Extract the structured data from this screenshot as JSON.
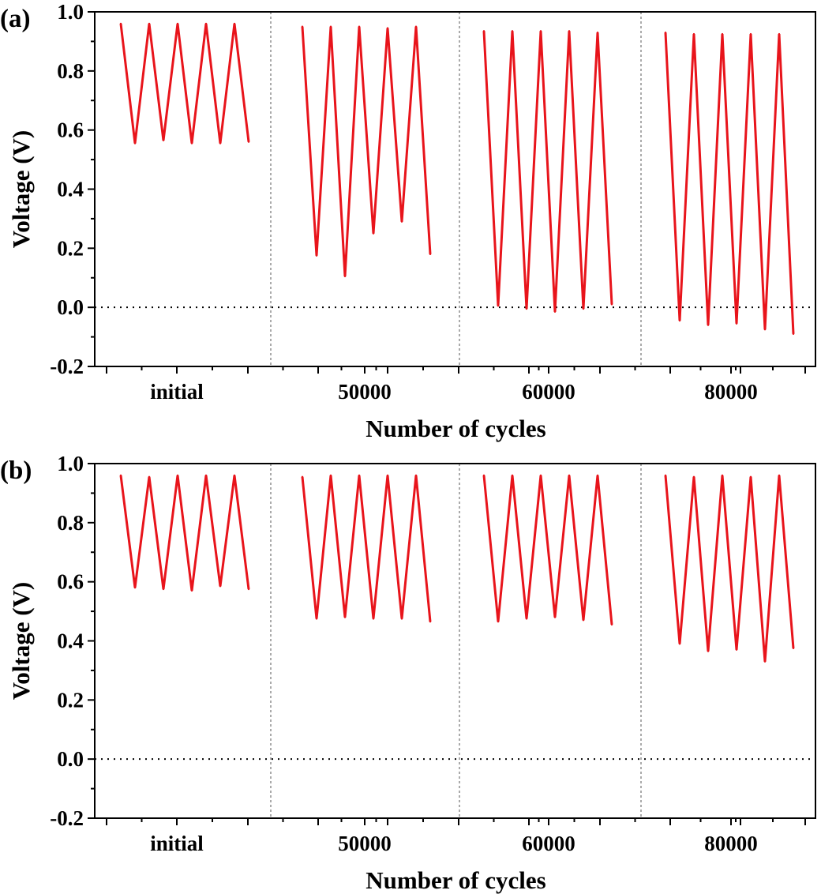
{
  "chart_data": [
    {
      "type": "line",
      "panel_label": "(a)",
      "xlabel": "Number of cycles",
      "ylabel": "Voltage (V)",
      "ylim": [
        -0.2,
        1.0
      ],
      "yticks": [
        "1.0",
        "0.8",
        "0.6",
        "0.4",
        "0.2",
        "0.0",
        "-0.2"
      ],
      "categories": [
        "initial",
        "50000",
        "60000",
        "80000"
      ],
      "zero_line": true,
      "series_color": "#e8141b",
      "groups": [
        {
          "category": "initial",
          "values": [
            0.96,
            0.555,
            0.96,
            0.565,
            0.96,
            0.555,
            0.96,
            0.555,
            0.96,
            0.56
          ]
        },
        {
          "category": "50000",
          "values": [
            0.95,
            0.175,
            0.95,
            0.105,
            0.95,
            0.25,
            0.945,
            0.29,
            0.95,
            0.18
          ]
        },
        {
          "category": "60000",
          "values": [
            0.935,
            0.005,
            0.935,
            -0.005,
            0.935,
            -0.015,
            0.935,
            -0.005,
            0.93,
            0.01
          ]
        },
        {
          "category": "80000",
          "values": [
            0.93,
            -0.045,
            0.925,
            -0.06,
            0.925,
            -0.055,
            0.925,
            -0.075,
            0.925,
            -0.09
          ]
        }
      ]
    },
    {
      "type": "line",
      "panel_label": "(b)",
      "xlabel": "Number of cycles",
      "ylabel": "Voltage (V)",
      "ylim": [
        -0.2,
        1.0
      ],
      "yticks": [
        "1.0",
        "0.8",
        "0.6",
        "0.4",
        "0.2",
        "0.0",
        "-0.2"
      ],
      "categories": [
        "initial",
        "50000",
        "60000",
        "80000"
      ],
      "zero_line": true,
      "series_color": "#e8141b",
      "groups": [
        {
          "category": "initial",
          "values": [
            0.96,
            0.58,
            0.955,
            0.575,
            0.96,
            0.57,
            0.96,
            0.585,
            0.96,
            0.575
          ]
        },
        {
          "category": "50000",
          "values": [
            0.955,
            0.475,
            0.96,
            0.48,
            0.96,
            0.475,
            0.96,
            0.475,
            0.96,
            0.465
          ]
        },
        {
          "category": "60000",
          "values": [
            0.96,
            0.465,
            0.96,
            0.475,
            0.96,
            0.48,
            0.96,
            0.47,
            0.96,
            0.455
          ]
        },
        {
          "category": "80000",
          "values": [
            0.96,
            0.39,
            0.955,
            0.365,
            0.96,
            0.37,
            0.955,
            0.33,
            0.96,
            0.375
          ]
        }
      ]
    }
  ]
}
